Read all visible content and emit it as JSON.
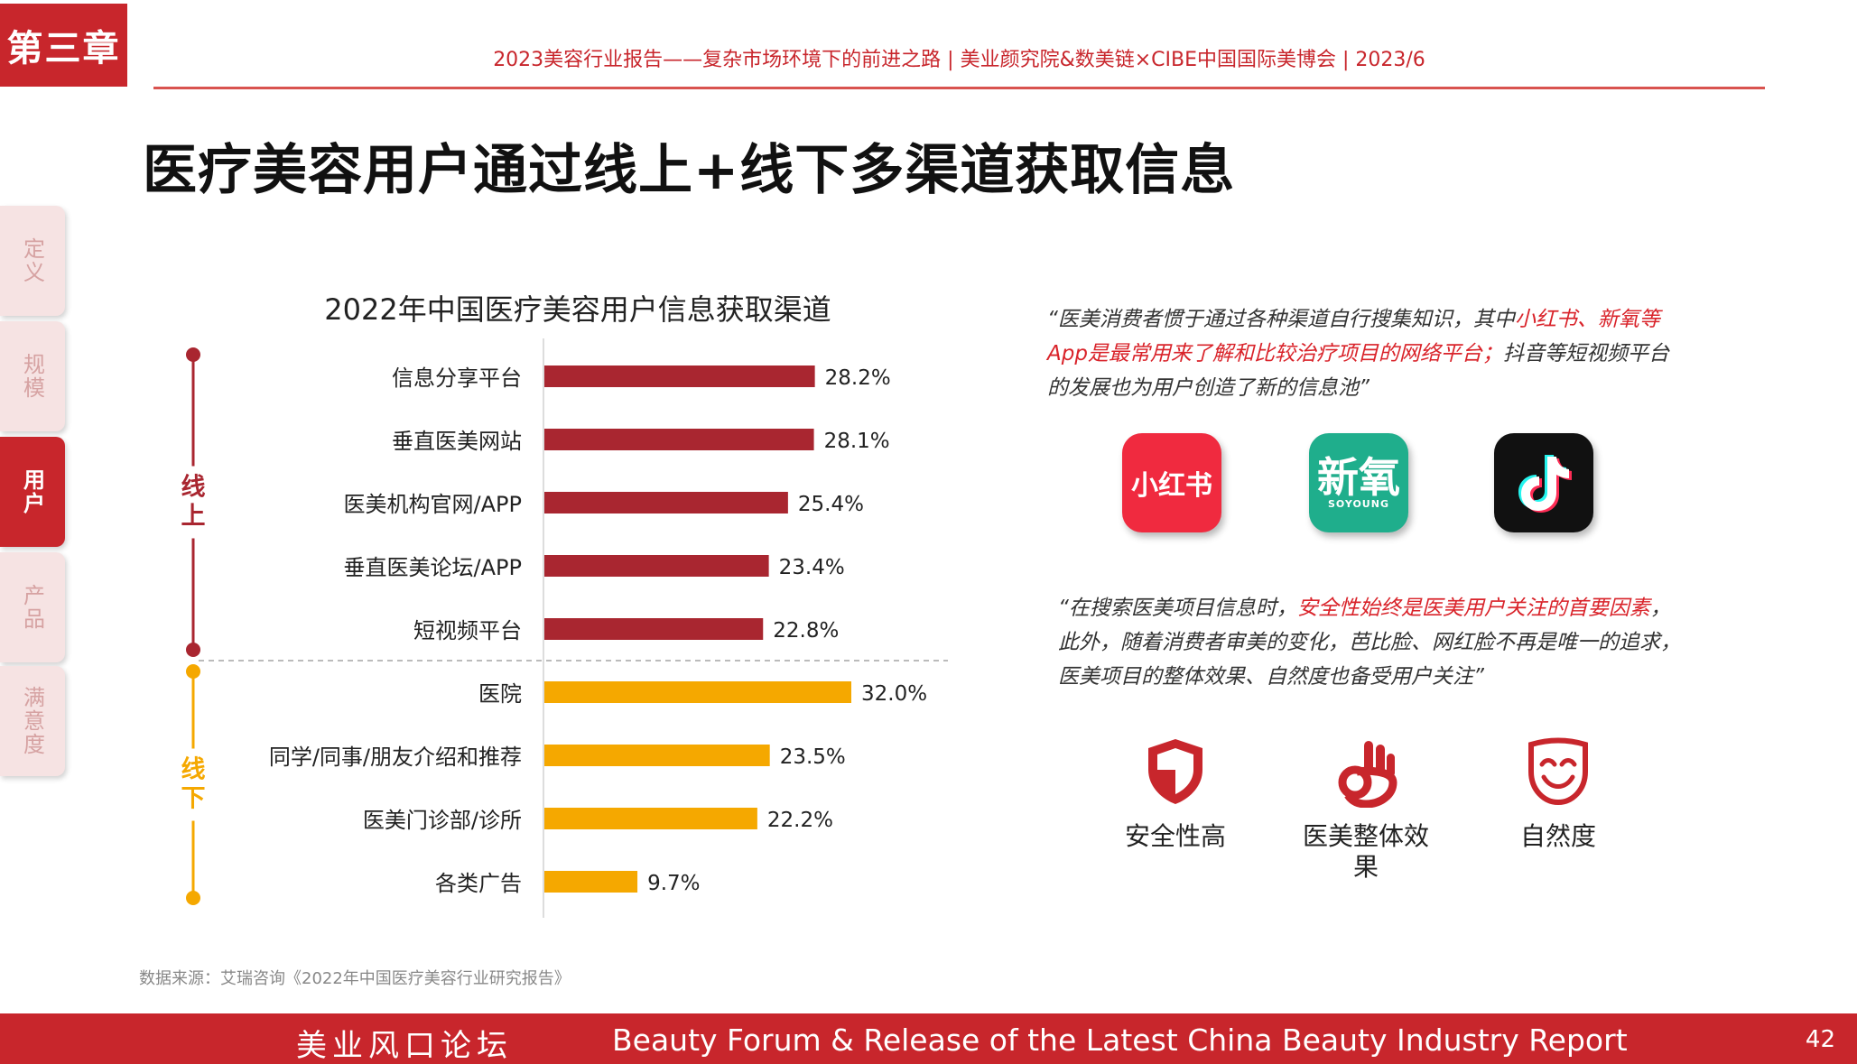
{
  "header": {
    "chapter": "第三章",
    "meta": "2023美容行业报告——复杂市场环境下的前进之路  |  美业颜究院&数美链×CIBE中国国际美博会  |  2023/6"
  },
  "title": "医疗美容用户通过线上+线下多渠道获取信息",
  "side_nav": [
    "定义",
    "规模",
    "用户",
    "产品",
    "满意度"
  ],
  "side_nav_active": 2,
  "chart_data": {
    "type": "bar",
    "orientation": "horizontal",
    "title": "2022年中国医疗美容用户信息获取渠道",
    "categories": [
      "信息分享平台",
      "垂直医美网站",
      "医美机构官网/APP",
      "垂直医美论坛/APP",
      "短视频平台",
      "医院",
      "同学/同事/朋友介绍和推荐",
      "医美门诊部/诊所",
      "各类广告"
    ],
    "values": [
      28.2,
      28.1,
      25.4,
      23.4,
      22.8,
      32.0,
      23.5,
      22.2,
      9.7
    ],
    "value_labels": [
      "28.2%",
      "28.1%",
      "25.4%",
      "23.4%",
      "22.8%",
      "32.0%",
      "23.5%",
      "22.2%",
      "9.7%"
    ],
    "groups": [
      {
        "name": "线上",
        "start": 0,
        "end": 4,
        "color": "#a92630"
      },
      {
        "name": "线下",
        "start": 5,
        "end": 8,
        "color": "#f5a800"
      }
    ],
    "xlim": [
      0,
      35
    ],
    "grid": false
  },
  "quote1": {
    "p1": "“医美消费者惯于通过各种渠道自行搜集知识，其中",
    "hl": "小红书、新氧等App是最常用来了解和比较治疗项目的网络平台；",
    "p2": "抖音等短视频平台的发展也为用户创造了新的信息池”"
  },
  "apps": {
    "xiaohongshu": "小红书",
    "soyoung_cn": "新氧",
    "soyoung_en": "SOYOUNG"
  },
  "quote2": {
    "p1": "“在搜索医美项目信息时，",
    "hl": "安全性始终是医美用户关注的首要因素",
    "p2": "，此外，随着消费者审美的变化，芭比脸、网红脸不再是唯一的追求，医美项目的整体效果、自然度也备受用户关注”"
  },
  "features": [
    "安全性高",
    "医美整体效果",
    "自然度"
  ],
  "source": "数据来源：艾瑞咨询《2022年中国医疗美容行业研究报告》",
  "footer": {
    "cn": "美业风口论坛",
    "en": "Beauty Forum & Release of the Latest China Beauty Industry Report",
    "page": "42"
  }
}
